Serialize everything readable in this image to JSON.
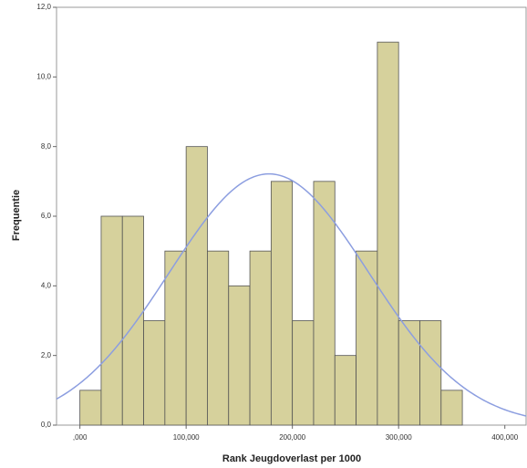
{
  "chart_data": {
    "type": "histogram",
    "x_label": "Rank Jeugdoverlast per 1000",
    "y_label": "Frequentie",
    "bins": [
      0,
      20,
      40,
      60,
      80,
      100,
      120,
      140,
      160,
      180,
      200,
      220,
      240,
      260,
      280,
      300,
      320,
      340,
      360
    ],
    "values": [
      1,
      6,
      6,
      3,
      5,
      8,
      5,
      4,
      5,
      7,
      3,
      7,
      2,
      5,
      11,
      3,
      3,
      1
    ],
    "color": "#d6d19c",
    "edge_color": "#555555",
    "normal_curve": {
      "mean": 178,
      "sd": 94,
      "color": "#8c9ee0"
    },
    "xlim": [
      -22,
      420
    ],
    "ylim": [
      0,
      12
    ],
    "xticks": [
      {
        "value": 0,
        "label": ",000"
      },
      {
        "value": 100,
        "label": "100,000"
      },
      {
        "value": 200,
        "label": "200,000"
      },
      {
        "value": 300,
        "label": "300,000"
      },
      {
        "value": 400,
        "label": "400,000"
      }
    ],
    "yticks": [
      {
        "value": 0,
        "label": "0,0"
      },
      {
        "value": 2,
        "label": "2,0"
      },
      {
        "value": 4,
        "label": "4,0"
      },
      {
        "value": 6,
        "label": "6,0"
      },
      {
        "value": 8,
        "label": "8,0"
      },
      {
        "value": 10,
        "label": "10,0"
      },
      {
        "value": 12,
        "label": "12,0"
      }
    ]
  }
}
